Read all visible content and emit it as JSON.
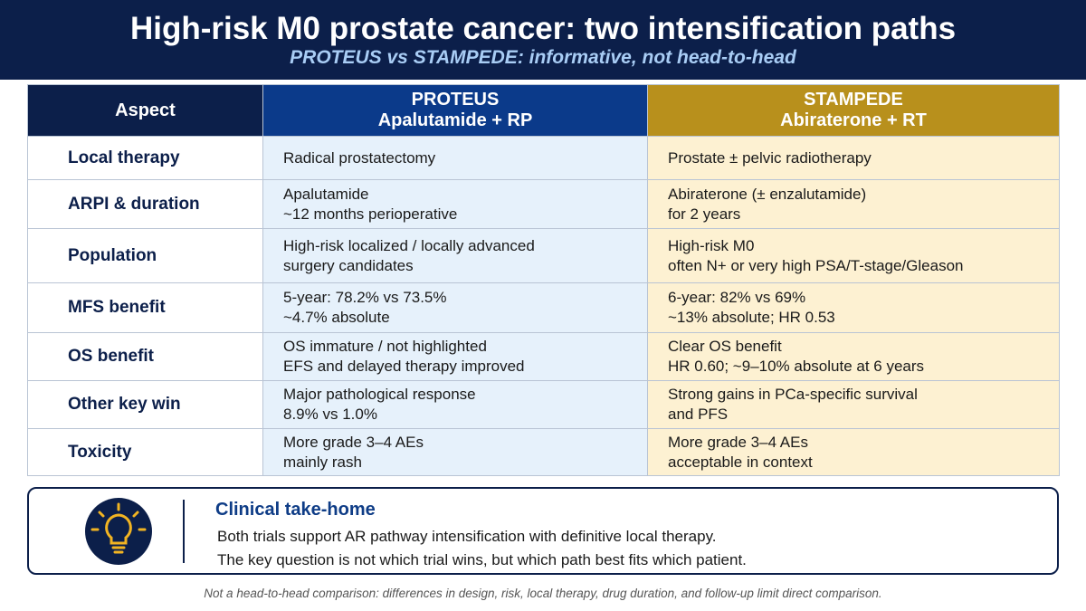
{
  "header": {
    "title": "High-risk M0 prostate cancer: two intensification paths",
    "subtitle": "PROTEUS vs STAMPEDE: informative, not head-to-head"
  },
  "table": {
    "header": [
      [
        "Aspect"
      ],
      [
        "PROTEUS",
        "Apalutamide + RP"
      ],
      [
        "STAMPEDE",
        "Abiraterone + RT"
      ]
    ],
    "rows": [
      [
        [
          "Local therapy"
        ],
        [
          "Radical prostatectomy"
        ],
        [
          "Prostate ± pelvic radiotherapy"
        ]
      ],
      [
        [
          "ARPI & duration"
        ],
        [
          "Apalutamide",
          "~12 months perioperative"
        ],
        [
          "Abiraterone (± enzalutamide)",
          "for 2 years"
        ]
      ],
      [
        [
          "Population"
        ],
        [
          "High-risk localized / locally advanced",
          "surgery candidates"
        ],
        [
          "High-risk M0",
          "often N+ or very high PSA/T-stage/Gleason"
        ]
      ],
      [
        [
          "MFS benefit"
        ],
        [
          "5-year: 78.2% vs 73.5%",
          "~4.7% absolute"
        ],
        [
          "6-year: 82% vs 69%",
          "~13% absolute; HR 0.53"
        ]
      ],
      [
        [
          "OS benefit"
        ],
        [
          "OS immature / not highlighted",
          "EFS and delayed therapy improved"
        ],
        [
          "Clear OS benefit",
          "HR 0.60; ~9–10% absolute at 6 years"
        ]
      ],
      [
        [
          "Other key win"
        ],
        [
          "Major pathological response",
          "8.9% vs 1.0%"
        ],
        [
          "Strong gains in PCa-specific survival",
          "and PFS"
        ]
      ],
      [
        [
          "Toxicity"
        ],
        [
          "More grade 3–4 AEs",
          "mainly rash"
        ],
        [
          "More grade 3–4 AEs",
          "acceptable in context"
        ]
      ]
    ]
  },
  "takeaway": {
    "title": "Clinical take-home",
    "lines": [
      "Both trials support AR pathway intensification with definitive local therapy.",
      "The key question is not which trial wins, but which path best fits which patient."
    ]
  },
  "footnote": "Not a head-to-head comparison: differences in design, risk, local therapy, drug duration, and follow-up limit direct comparison."
}
